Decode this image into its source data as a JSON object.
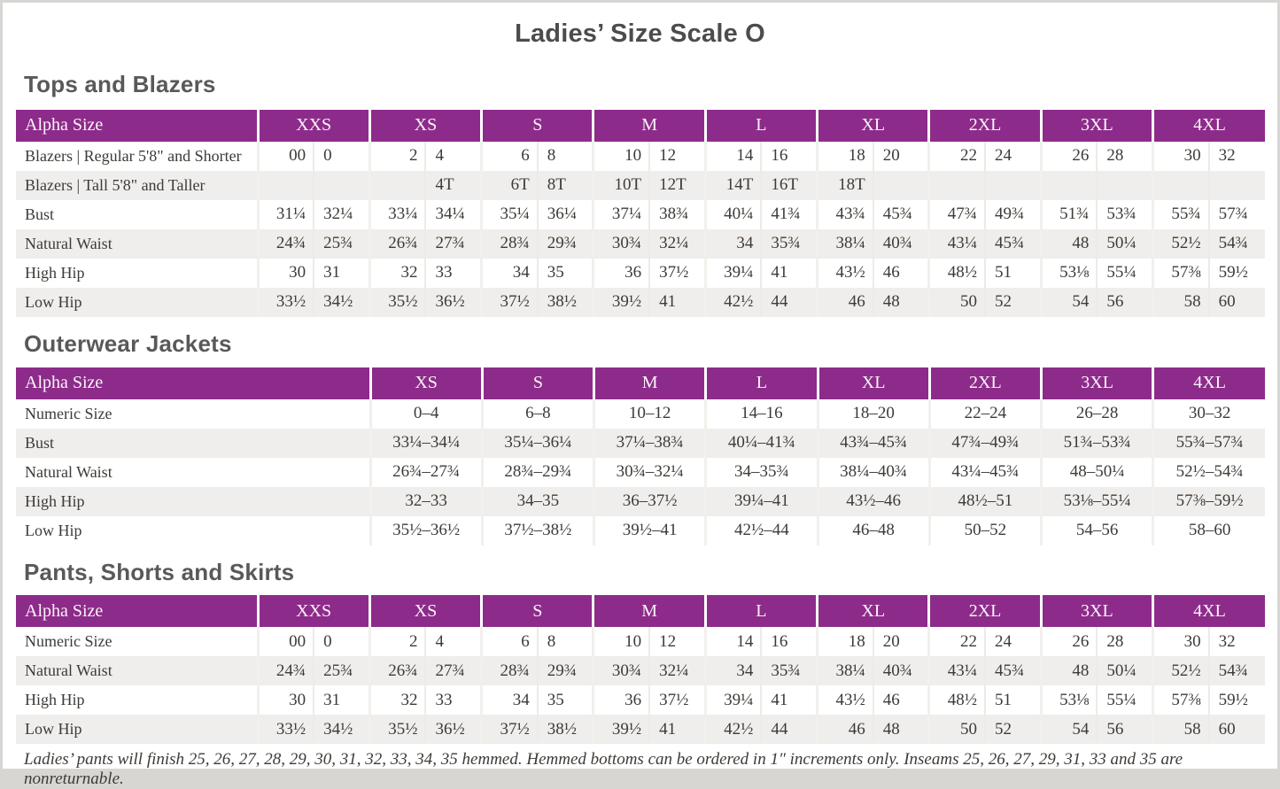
{
  "title": "Ladies’ Size Scale O",
  "colors": {
    "accent": "#8d2b8a",
    "stripe": "#f0eeec"
  },
  "footnote": "Ladies’ pants will finish 25, 26, 27, 28, 29, 30, 31, 32, 33, 34, 35 hemmed. Hemmed bottoms can be ordered in 1″ increments only. Inseams 25, 26, 27, 29, 31, 33 and 35 are nonreturnable.",
  "tables": [
    {
      "section": "Tops and Blazers",
      "header_label": "Alpha Size",
      "sizes": [
        "XXS",
        "XS",
        "S",
        "M",
        "L",
        "XL",
        "2XL",
        "3XL",
        "4XL"
      ],
      "cols_per_size": 2,
      "rows": [
        {
          "label": "Blazers  |  Regular 5'8\" and Shorter",
          "cells": [
            "00",
            "0",
            "2",
            "4",
            "6",
            "8",
            "10",
            "12",
            "14",
            "16",
            "18",
            "20",
            "22",
            "24",
            "26",
            "28",
            "30",
            "32"
          ]
        },
        {
          "label": "Blazers  |  Tall 5'8\" and Taller",
          "cells": [
            "",
            "",
            "",
            "4T",
            "6T",
            "8T",
            "10T",
            "12T",
            "14T",
            "16T",
            "18T",
            "",
            "",
            "",
            "",
            "",
            "",
            ""
          ]
        },
        {
          "label": "Bust",
          "cells": [
            "31¼",
            "32¼",
            "33¼",
            "34¼",
            "35¼",
            "36¼",
            "37¼",
            "38¾",
            "40¼",
            "41¾",
            "43¾",
            "45¾",
            "47¾",
            "49¾",
            "51¾",
            "53¾",
            "55¾",
            "57¾"
          ]
        },
        {
          "label": "Natural Waist",
          "cells": [
            "24¾",
            "25¾",
            "26¾",
            "27¾",
            "28¾",
            "29¾",
            "30¾",
            "32¼",
            "34",
            "35¾",
            "38¼",
            "40¾",
            "43¼",
            "45¾",
            "48",
            "50¼",
            "52½",
            "54¾"
          ]
        },
        {
          "label": "High Hip",
          "cells": [
            "30",
            "31",
            "32",
            "33",
            "34",
            "35",
            "36",
            "37½",
            "39¼",
            "41",
            "43½",
            "46",
            "48½",
            "51",
            "53⅛",
            "55¼",
            "57⅜",
            "59½"
          ]
        },
        {
          "label": "Low Hip",
          "cells": [
            "33½",
            "34½",
            "35½",
            "36½",
            "37½",
            "38½",
            "39½",
            "41",
            "42½",
            "44",
            "46",
            "48",
            "50",
            "52",
            "54",
            "56",
            "58",
            "60"
          ]
        }
      ]
    },
    {
      "section": "Outerwear Jackets",
      "header_label": "Alpha Size",
      "sizes": [
        "XS",
        "S",
        "M",
        "L",
        "XL",
        "2XL",
        "3XL",
        "4XL"
      ],
      "cols_per_size": 1,
      "rows": [
        {
          "label": "Numeric Size",
          "cells": [
            "0–4",
            "6–8",
            "10–12",
            "14–16",
            "18–20",
            "22–24",
            "26–28",
            "30–32"
          ]
        },
        {
          "label": "Bust",
          "cells": [
            "33¼–34¼",
            "35¼–36¼",
            "37¼–38¾",
            "40¼–41¾",
            "43¾–45¾",
            "47¾–49¾",
            "51¾–53¾",
            "55¾–57¾"
          ]
        },
        {
          "label": "Natural Waist",
          "cells": [
            "26¾–27¾",
            "28¾–29¾",
            "30¾–32¼",
            "34–35¾",
            "38¼–40¾",
            "43¼–45¾",
            "48–50¼",
            "52½–54¾"
          ]
        },
        {
          "label": "High Hip",
          "cells": [
            "32–33",
            "34–35",
            "36–37½",
            "39¼–41",
            "43½–46",
            "48½–51",
            "53⅛–55¼",
            "57⅜–59½"
          ]
        },
        {
          "label": "Low Hip",
          "cells": [
            "35½–36½",
            "37½–38½",
            "39½–41",
            "42½–44",
            "46–48",
            "50–52",
            "54–56",
            "58–60"
          ]
        }
      ]
    },
    {
      "section": "Pants, Shorts and Skirts",
      "header_label": "Alpha Size",
      "sizes": [
        "XXS",
        "XS",
        "S",
        "M",
        "L",
        "XL",
        "2XL",
        "3XL",
        "4XL"
      ],
      "cols_per_size": 2,
      "rows": [
        {
          "label": "Numeric Size",
          "cells": [
            "00",
            "0",
            "2",
            "4",
            "6",
            "8",
            "10",
            "12",
            "14",
            "16",
            "18",
            "20",
            "22",
            "24",
            "26",
            "28",
            "30",
            "32"
          ]
        },
        {
          "label": "Natural Waist",
          "cells": [
            "24¾",
            "25¾",
            "26¾",
            "27¾",
            "28¾",
            "29¾",
            "30¾",
            "32¼",
            "34",
            "35¾",
            "38¼",
            "40¾",
            "43¼",
            "45¾",
            "48",
            "50¼",
            "52½",
            "54¾"
          ]
        },
        {
          "label": "High Hip",
          "cells": [
            "30",
            "31",
            "32",
            "33",
            "34",
            "35",
            "36",
            "37½",
            "39¼",
            "41",
            "43½",
            "46",
            "48½",
            "51",
            "53⅛",
            "55¼",
            "57⅜",
            "59½"
          ]
        },
        {
          "label": "Low Hip",
          "cells": [
            "33½",
            "34½",
            "35½",
            "36½",
            "37½",
            "38½",
            "39½",
            "41",
            "42½",
            "44",
            "46",
            "48",
            "50",
            "52",
            "54",
            "56",
            "58",
            "60"
          ]
        }
      ]
    }
  ]
}
